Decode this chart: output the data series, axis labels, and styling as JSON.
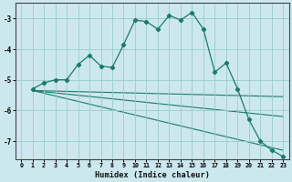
{
  "xlabel": "Humidex (Indice chaleur)",
  "bg_color": "#cce8ee",
  "grid_color": "#99cccc",
  "line_color": "#1a7a6e",
  "xlim": [
    -0.5,
    23.5
  ],
  "ylim": [
    -7.6,
    -2.5
  ],
  "yticks": [
    -7,
    -6,
    -5,
    -4,
    -3
  ],
  "xticks": [
    0,
    1,
    2,
    3,
    4,
    5,
    6,
    7,
    8,
    9,
    10,
    11,
    12,
    13,
    14,
    15,
    16,
    17,
    18,
    19,
    20,
    21,
    22,
    23
  ],
  "main_line": {
    "x": [
      1,
      2,
      3,
      4,
      5,
      6,
      7,
      8,
      9,
      10,
      11,
      12,
      13,
      14,
      15,
      16,
      17,
      18,
      19,
      20,
      21,
      22,
      23
    ],
    "y": [
      -5.3,
      -5.1,
      -5.0,
      -5.0,
      -4.5,
      -4.2,
      -4.55,
      -4.6,
      -3.85,
      -3.05,
      -3.1,
      -3.35,
      -2.9,
      -3.05,
      -2.8,
      -3.35,
      -4.75,
      -4.45,
      -5.3,
      -6.3,
      -7.0,
      -7.3,
      -7.5
    ]
  },
  "straight_lines": [
    {
      "x": [
        1,
        23
      ],
      "y": [
        -5.35,
        -5.55
      ]
    },
    {
      "x": [
        1,
        23
      ],
      "y": [
        -5.35,
        -6.2
      ]
    },
    {
      "x": [
        1,
        23
      ],
      "y": [
        -5.35,
        -7.3
      ]
    }
  ]
}
